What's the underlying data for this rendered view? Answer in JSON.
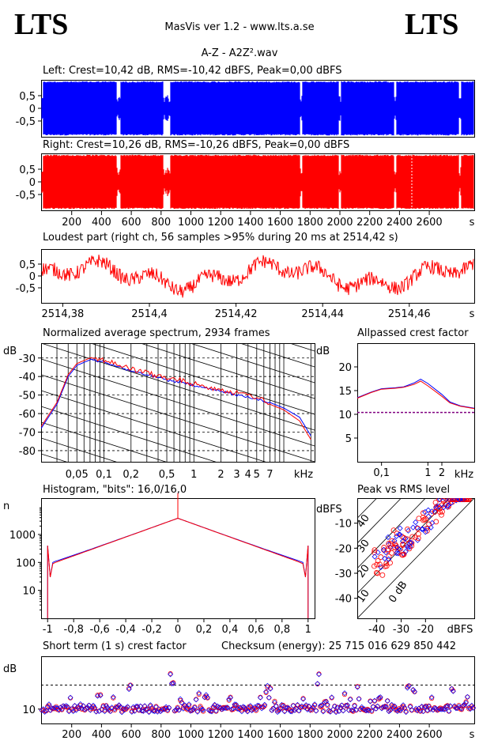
{
  "header": {
    "logo_left": "LTS",
    "logo_right": "LTS",
    "app": "MasVis ver 1.2 - www.lts.a.se",
    "file": "A-Z - A2Z².wav"
  },
  "chart_data": [
    {
      "type": "area",
      "id": "left",
      "title": "Left: Crest=10,42 dB, RMS=-10,42 dBFS, Peak=0,00 dBFS",
      "yticks": [
        "0,5",
        "0",
        "-0,5"
      ],
      "ylim": [
        -1,
        1
      ],
      "color": "#0000ff"
    },
    {
      "type": "area",
      "id": "right",
      "title": "Right: Crest=10,26 dB, RMS=-10,26 dBFS, Peak=0,00 dBFS",
      "yticks": [
        "0,5",
        "0",
        "-0,5"
      ],
      "ylim": [
        -1,
        1
      ],
      "color": "#ff0000",
      "xticks": [
        "200",
        "400",
        "600",
        "800",
        "1000",
        "1200",
        "1400",
        "1600",
        "1800",
        "2000",
        "2200",
        "2400",
        "2600",
        "s"
      ]
    },
    {
      "type": "line",
      "id": "loudest",
      "title": "Loudest part (right ch, 56 samples >95% during 20 ms at 2514,42 s)",
      "yticks": [
        "0,5",
        "0",
        "-0,5"
      ],
      "xticks": [
        "2514,38",
        "2514,4",
        "2514,42",
        "2514,44",
        "2514,46",
        "s"
      ],
      "xlim": [
        2514.375,
        2514.475
      ],
      "color": "#ff0000"
    },
    {
      "type": "line",
      "id": "spectrum",
      "title": "Normalized average spectrum, 2934 frames",
      "ylabel": "dB",
      "yticks": [
        "-30",
        "-40",
        "-50",
        "-60",
        "-70",
        "-80"
      ],
      "xticks": [
        "0,05",
        "0,1",
        "0,2",
        "0,5",
        "1",
        "2",
        "3",
        "4",
        "5",
        "7",
        "kHz"
      ],
      "x_khz": [
        0.02,
        0.03,
        0.04,
        0.05,
        0.07,
        0.1,
        0.2,
        0.3,
        0.5,
        0.7,
        1,
        2,
        3,
        5,
        7,
        10,
        15,
        20
      ],
      "series": [
        {
          "color": "#0000ff",
          "values": [
            -68,
            -55,
            -40,
            -34,
            -31,
            -32,
            -37,
            -39,
            -42,
            -43,
            -45,
            -48,
            -50,
            -52,
            -54,
            -57,
            -62,
            -72
          ]
        },
        {
          "color": "#ff0000",
          "values": [
            -67,
            -54,
            -39,
            -33,
            -30,
            -31,
            -36,
            -38,
            -41,
            -42,
            -44,
            -47,
            -49,
            -51,
            -55,
            -58,
            -64,
            -74
          ]
        }
      ]
    },
    {
      "type": "line",
      "id": "allpassed",
      "title": "Allpassed crest factor",
      "ylabel": "dB",
      "yticks": [
        "20",
        "15",
        "10",
        "5"
      ],
      "xticks": [
        "0,1",
        "1",
        "2",
        "kHz"
      ],
      "reference_db": 10.4,
      "x_khz": [
        0.03,
        0.06,
        0.1,
        0.2,
        0.3,
        0.5,
        0.7,
        1,
        2,
        3,
        5,
        10
      ],
      "series": [
        {
          "color": "#0000ff",
          "values": [
            13.5,
            14.7,
            15.4,
            15.6,
            15.8,
            16.6,
            17.4,
            16.5,
            14.2,
            12.6,
            11.8,
            11.3
          ]
        },
        {
          "color": "#ff0000",
          "values": [
            13.4,
            14.6,
            15.3,
            15.5,
            15.7,
            16.3,
            17.0,
            16.0,
            13.8,
            12.4,
            11.7,
            11.2
          ]
        }
      ]
    },
    {
      "type": "line",
      "id": "histogram",
      "title": "Histogram, \"bits\": 16,0/16,0",
      "ylabel": "n",
      "yticks": [
        "1000",
        "100",
        "10"
      ],
      "xticks": [
        "-1",
        "-0,8",
        "-0,6",
        "-0,4",
        "-0,2",
        "0",
        "0,2",
        "0,4",
        "0,6",
        "0,8",
        "1"
      ],
      "xlim": [
        -1.05,
        1.05
      ]
    },
    {
      "type": "scatter",
      "id": "peakrms",
      "title": "Peak vs RMS level",
      "ylabel": "dBFS",
      "xlabel": "dBFS",
      "yticks": [
        "-10",
        "-20",
        "-30",
        "-40"
      ],
      "xticks": [
        "-40",
        "-30",
        "-20"
      ],
      "crest_lines": [
        "40",
        "30",
        "20",
        "10",
        "0 dB"
      ]
    },
    {
      "type": "scatter",
      "id": "shortterm",
      "title": "Short term (1 s) crest factor",
      "checksum": "Checksum (energy):  25 715 016 629 850 442",
      "ylabel": "dB",
      "yticks": [
        "10"
      ],
      "xticks": [
        "200",
        "400",
        "600",
        "800",
        "1000",
        "1200",
        "1400",
        "1600",
        "1800",
        "2000",
        "2200",
        "2400",
        "2600",
        "s"
      ]
    }
  ]
}
